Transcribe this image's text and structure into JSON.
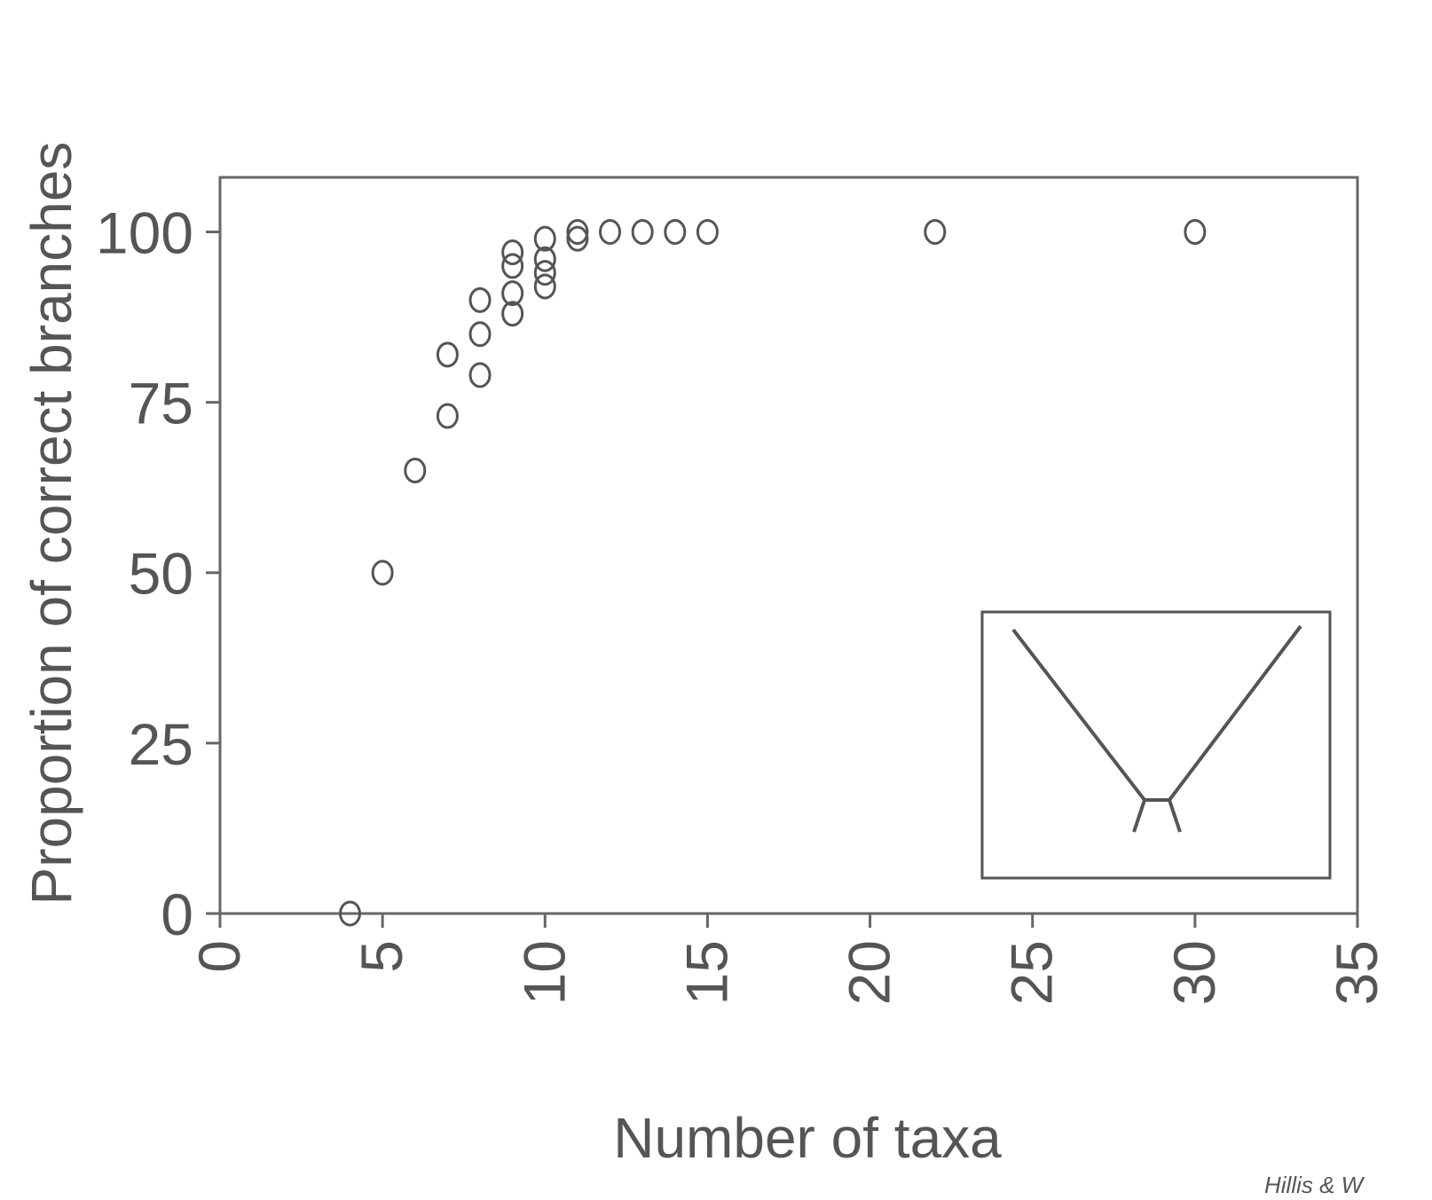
{
  "chart_data": {
    "type": "scatter",
    "x_label": "Number of taxa",
    "y_label": "Proportion of correct branches",
    "credit": "Hillis & W",
    "x": [
      4,
      5,
      6,
      7,
      7,
      8,
      8,
      8,
      9,
      9,
      9,
      9,
      10,
      10,
      10,
      10,
      11,
      11,
      12,
      13,
      14,
      15,
      22,
      30
    ],
    "values": [
      0,
      50,
      65,
      73,
      82,
      79,
      85,
      90,
      88,
      91,
      95,
      97,
      92,
      94,
      96,
      99,
      99,
      100,
      100,
      100,
      100,
      100,
      100,
      100
    ],
    "color": "#555555",
    "xlim": [
      0,
      35
    ],
    "xticks": [
      0,
      5,
      10,
      15,
      20,
      25,
      30,
      35
    ],
    "ylim": [
      0,
      108
    ],
    "yticks": [
      0,
      25,
      50,
      75,
      100
    ]
  }
}
